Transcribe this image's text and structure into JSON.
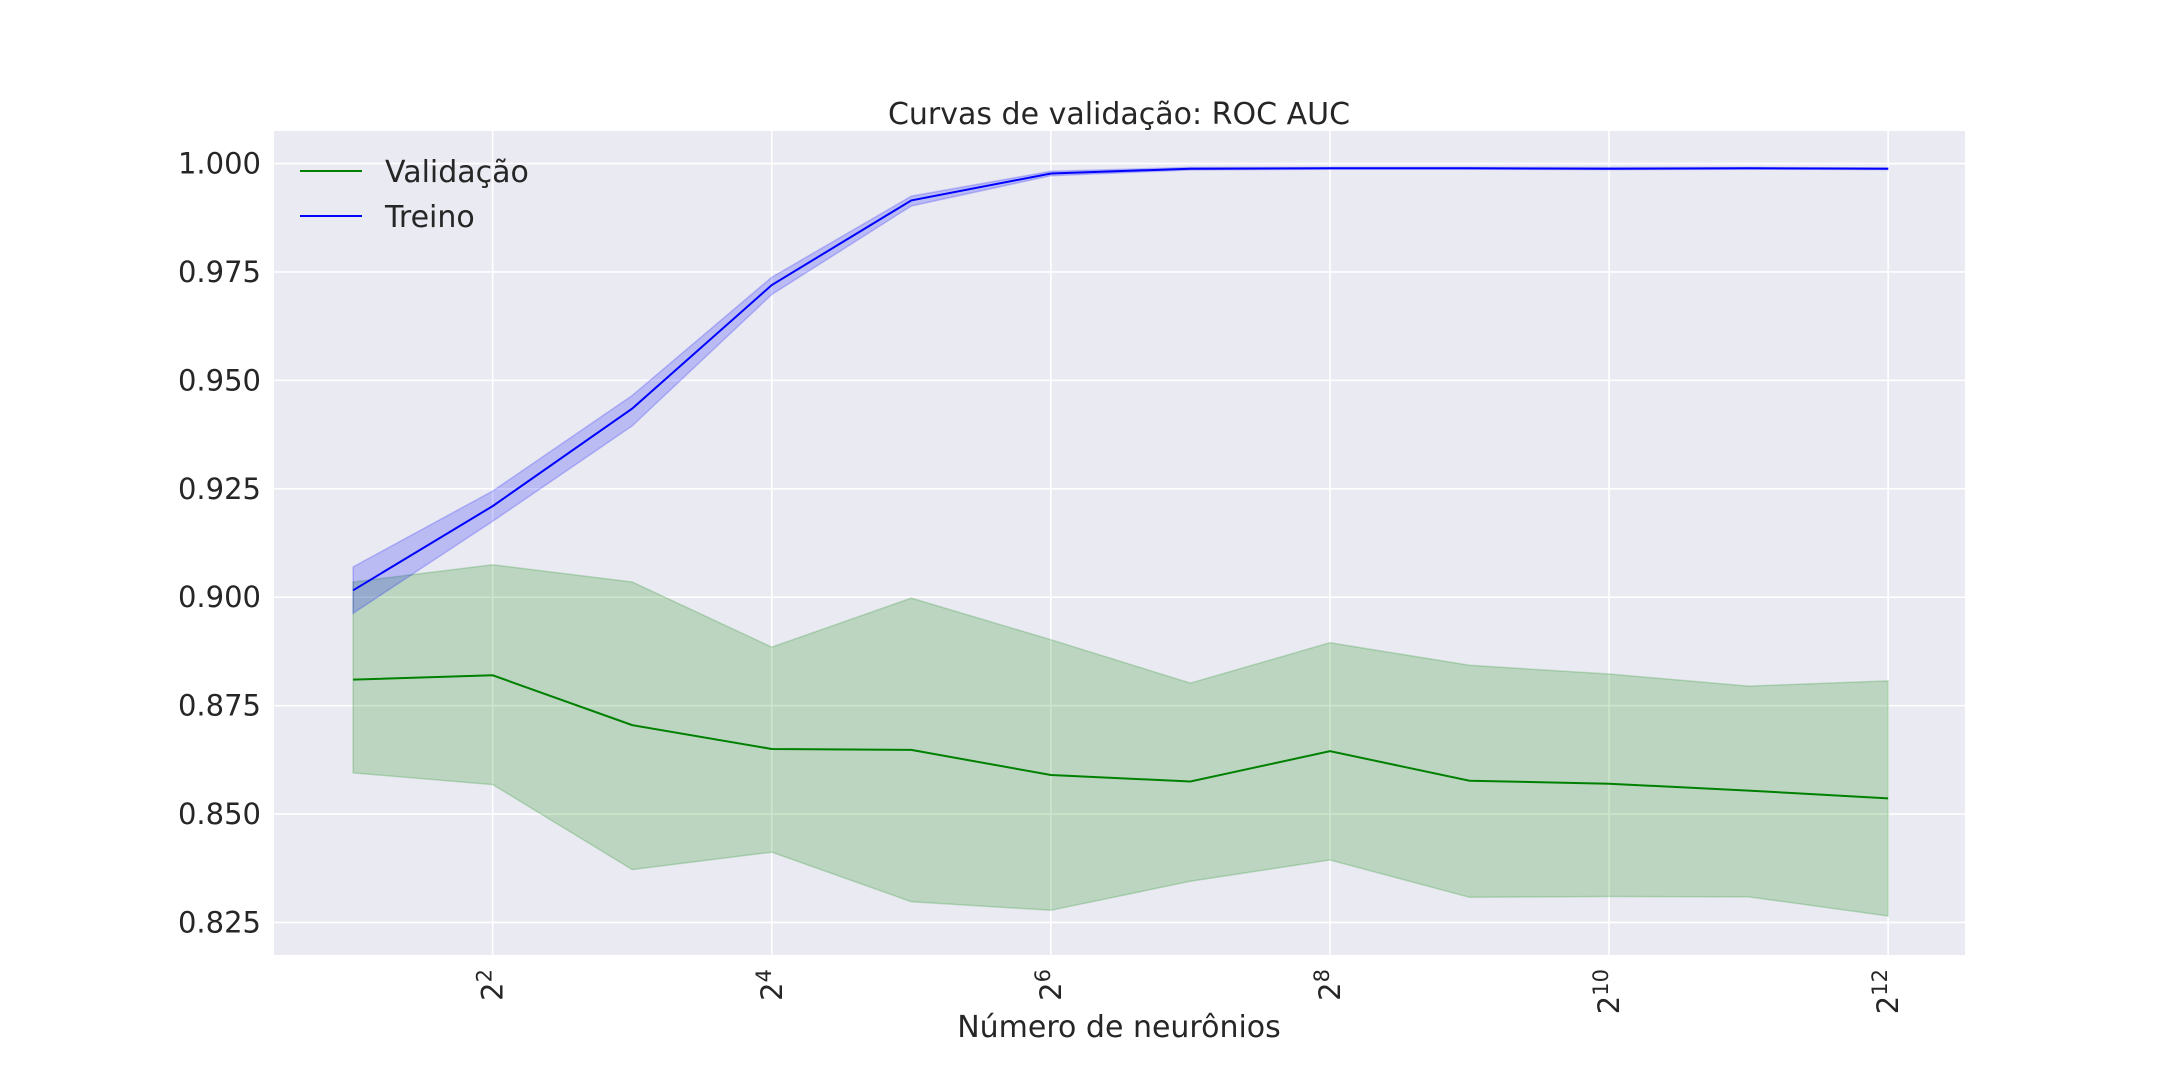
{
  "chart_data": {
    "type": "line",
    "title": "Curvas de validação: ROC AUC",
    "xlabel": "Número de neurônios",
    "ylabel": "",
    "x_scale": "log2",
    "x": [
      2,
      4,
      8,
      16,
      32,
      64,
      128,
      256,
      512,
      1024,
      2048,
      4096
    ],
    "xlim": [
      1.35,
      6000
    ],
    "ylim": [
      0.8175,
      1.0075
    ],
    "x_ticks": [
      {
        "value": 4,
        "base": "2",
        "exp": "2"
      },
      {
        "value": 16,
        "base": "2",
        "exp": "4"
      },
      {
        "value": 64,
        "base": "2",
        "exp": "6"
      },
      {
        "value": 256,
        "base": "2",
        "exp": "8"
      },
      {
        "value": 1024,
        "base": "2",
        "exp": "10"
      },
      {
        "value": 4096,
        "base": "2",
        "exp": "12"
      }
    ],
    "y_ticks": [
      {
        "value": 0.825,
        "label": "0.825"
      },
      {
        "value": 0.85,
        "label": "0.850"
      },
      {
        "value": 0.875,
        "label": "0.875"
      },
      {
        "value": 0.9,
        "label": "0.900"
      },
      {
        "value": 0.925,
        "label": "0.925"
      },
      {
        "value": 0.95,
        "label": "0.950"
      },
      {
        "value": 0.975,
        "label": "0.975"
      },
      {
        "value": 1.0,
        "label": "1.000"
      }
    ],
    "grid": true,
    "legend_position": "upper-left",
    "series": [
      {
        "name": "Validação",
        "color": "#008000",
        "values": [
          0.881,
          0.882,
          0.8705,
          0.865,
          0.8648,
          0.859,
          0.8575,
          0.8645,
          0.8577,
          0.857,
          0.8554,
          0.8536
        ],
        "upper": [
          0.9035,
          0.9075,
          0.9035,
          0.8885,
          0.8998,
          0.8902,
          0.8802,
          0.8895,
          0.8843,
          0.8823,
          0.8795,
          0.8807
        ],
        "lower": [
          0.8595,
          0.8568,
          0.8372,
          0.8412,
          0.8298,
          0.8278,
          0.8345,
          0.8394,
          0.8308,
          0.831,
          0.8309,
          0.8265
        ]
      },
      {
        "name": "Treino",
        "color": "#0000ff",
        "values": [
          0.9016,
          0.921,
          0.9435,
          0.972,
          0.9915,
          0.9977,
          0.9988,
          0.9989,
          0.9989,
          0.9988,
          0.9989,
          0.9988
        ],
        "upper": [
          0.907,
          0.9245,
          0.9465,
          0.9738,
          0.9925,
          0.9982,
          0.9991,
          0.9991,
          0.9991,
          0.9991,
          0.9991,
          0.999
        ],
        "lower": [
          0.8963,
          0.9175,
          0.9395,
          0.9698,
          0.9902,
          0.9972,
          0.9985,
          0.9987,
          0.9987,
          0.9986,
          0.9987,
          0.9986
        ]
      }
    ]
  }
}
